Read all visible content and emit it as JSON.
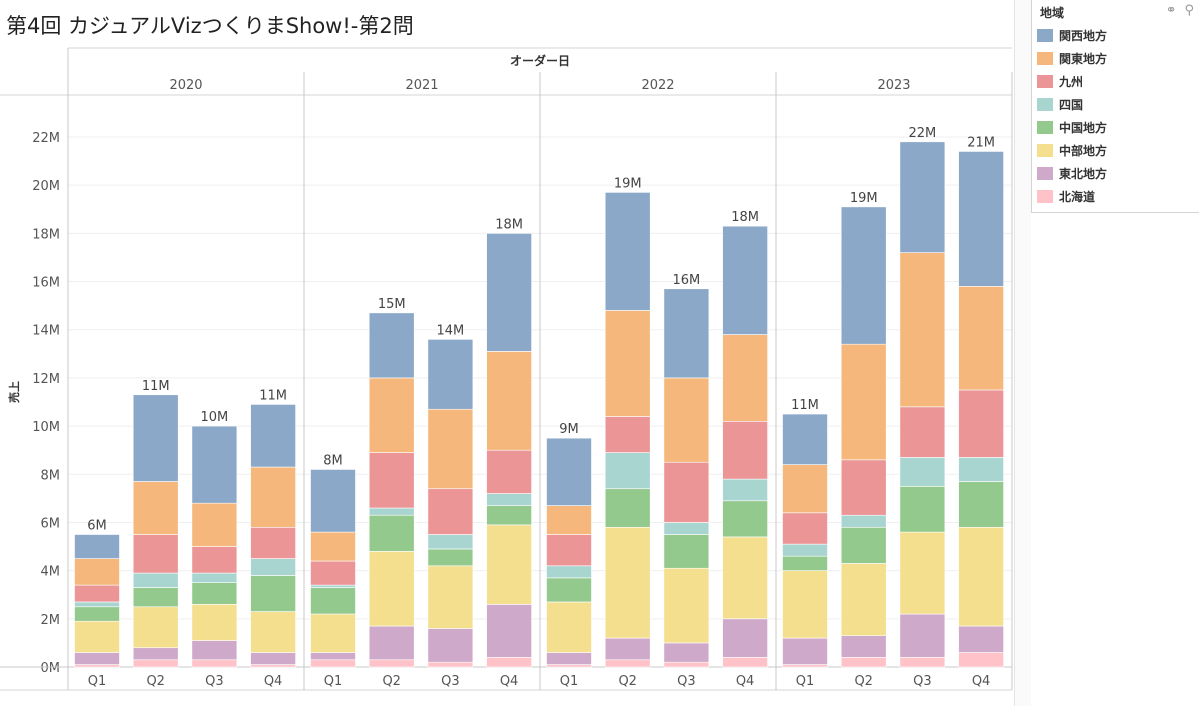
{
  "title": "第4回 カジュアルVizつくりまShow!-第2問",
  "header_label": "オーダー日",
  "legend": {
    "title": "地域",
    "items": [
      {
        "label": "関西地方",
        "color": "#8ba8c8"
      },
      {
        "label": "関東地方",
        "color": "#f5b77b"
      },
      {
        "label": "九州",
        "color": "#eb9597"
      },
      {
        "label": "四国",
        "color": "#a9d5d1"
      },
      {
        "label": "中国地方",
        "color": "#94c98d"
      },
      {
        "label": "中部地方",
        "color": "#f4df8e"
      },
      {
        "label": "東北地方",
        "color": "#cfa9c9"
      },
      {
        "label": "北海道",
        "color": "#ffc2c8"
      }
    ]
  },
  "chart_data": {
    "type": "bar",
    "stacked": true,
    "ylabel": "売上",
    "ylim": [
      0,
      22.5
    ],
    "yticks": [
      "0M",
      "2M",
      "4M",
      "6M",
      "8M",
      "10M",
      "12M",
      "14M",
      "16M",
      "18M",
      "20M",
      "22M"
    ],
    "years": [
      "2020",
      "2021",
      "2022",
      "2023"
    ],
    "quarters": [
      "Q1",
      "Q2",
      "Q3",
      "Q4"
    ],
    "stack_order_bottom_to_top": [
      "北海道",
      "東北地方",
      "中部地方",
      "中国地方",
      "四国",
      "九州",
      "関東地方",
      "関西地方"
    ],
    "bars": [
      {
        "year": "2020",
        "quarter": "Q1",
        "total_label": "6M",
        "values": [
          0.1,
          0.5,
          1.3,
          0.6,
          0.2,
          0.7,
          1.1,
          1.0
        ]
      },
      {
        "year": "2020",
        "quarter": "Q2",
        "total_label": "11M",
        "values": [
          0.3,
          0.5,
          1.7,
          0.8,
          0.6,
          1.6,
          2.2,
          3.6
        ]
      },
      {
        "year": "2020",
        "quarter": "Q3",
        "total_label": "10M",
        "values": [
          0.3,
          0.8,
          1.5,
          0.9,
          0.4,
          1.1,
          1.8,
          3.2
        ]
      },
      {
        "year": "2020",
        "quarter": "Q4",
        "total_label": "11M",
        "values": [
          0.1,
          0.5,
          1.7,
          1.5,
          0.7,
          1.3,
          2.5,
          2.6
        ]
      },
      {
        "year": "2021",
        "quarter": "Q1",
        "total_label": "8M",
        "values": [
          0.3,
          0.3,
          1.6,
          1.1,
          0.1,
          1.0,
          1.2,
          2.6
        ]
      },
      {
        "year": "2021",
        "quarter": "Q2",
        "total_label": "15M",
        "values": [
          0.3,
          1.4,
          3.1,
          1.5,
          0.3,
          2.3,
          3.1,
          2.7
        ]
      },
      {
        "year": "2021",
        "quarter": "Q3",
        "total_label": "14M",
        "values": [
          0.2,
          1.4,
          2.6,
          0.7,
          0.6,
          1.9,
          3.3,
          2.9
        ]
      },
      {
        "year": "2021",
        "quarter": "Q4",
        "total_label": "18M",
        "values": [
          0.4,
          2.2,
          3.3,
          0.8,
          0.5,
          1.8,
          4.1,
          4.9
        ]
      },
      {
        "year": "2022",
        "quarter": "Q1",
        "total_label": "9M",
        "values": [
          0.1,
          0.5,
          2.1,
          1.0,
          0.5,
          1.3,
          1.2,
          2.8
        ]
      },
      {
        "year": "2022",
        "quarter": "Q2",
        "total_label": "19M",
        "values": [
          0.3,
          0.9,
          4.6,
          1.6,
          1.5,
          1.5,
          4.4,
          4.9
        ]
      },
      {
        "year": "2022",
        "quarter": "Q3",
        "total_label": "16M",
        "values": [
          0.2,
          0.8,
          3.1,
          1.4,
          0.5,
          2.5,
          3.5,
          3.7
        ]
      },
      {
        "year": "2022",
        "quarter": "Q4",
        "total_label": "18M",
        "values": [
          0.4,
          1.6,
          3.4,
          1.5,
          0.9,
          2.4,
          3.6,
          4.5
        ]
      },
      {
        "year": "2023",
        "quarter": "Q1",
        "total_label": "11M",
        "values": [
          0.1,
          1.1,
          2.8,
          0.6,
          0.5,
          1.3,
          2.0,
          2.1
        ]
      },
      {
        "year": "2023",
        "quarter": "Q2",
        "total_label": "19M",
        "values": [
          0.4,
          0.9,
          3.0,
          1.5,
          0.5,
          2.3,
          4.8,
          5.7
        ]
      },
      {
        "year": "2023",
        "quarter": "Q3",
        "total_label": "22M",
        "values": [
          0.4,
          1.8,
          3.4,
          1.9,
          1.2,
          2.1,
          6.4,
          4.6
        ]
      },
      {
        "year": "2023",
        "quarter": "Q4",
        "total_label": "21M",
        "values": [
          0.6,
          1.1,
          4.1,
          1.9,
          1.0,
          2.8,
          4.3,
          5.6
        ]
      }
    ]
  }
}
